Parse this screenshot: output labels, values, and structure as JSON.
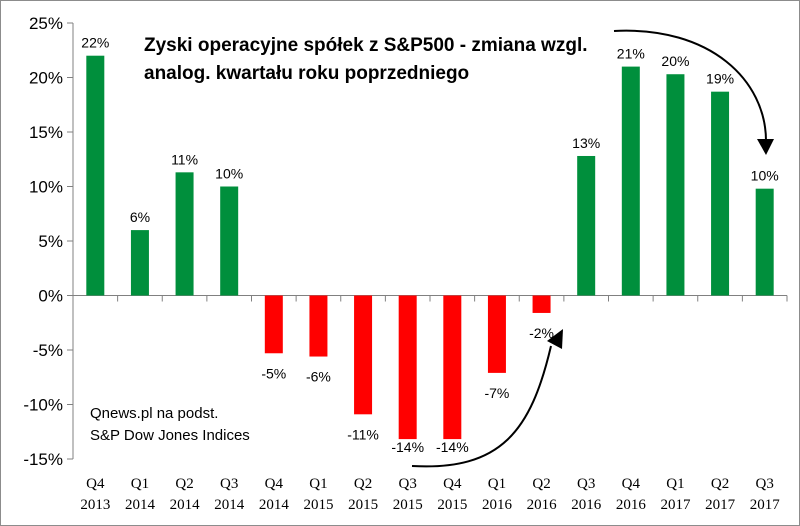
{
  "chart_data": {
    "type": "bar",
    "title": [
      "Zyski operacyjne spółek z S&P500 - zmiana wzgl.",
      "analog. kwartału roku poprzedniego"
    ],
    "source": [
      "Qnews.pl na podst.",
      "S&P Dow Jones Indices"
    ],
    "categories": [
      [
        "Q4",
        "2013"
      ],
      [
        "Q1",
        "2014"
      ],
      [
        "Q2",
        "2014"
      ],
      [
        "Q3",
        "2014"
      ],
      [
        "Q4",
        "2014"
      ],
      [
        "Q1",
        "2015"
      ],
      [
        "Q2",
        "2015"
      ],
      [
        "Q3",
        "2015"
      ],
      [
        "Q4",
        "2015"
      ],
      [
        "Q1",
        "2016"
      ],
      [
        "Q2",
        "2016"
      ],
      [
        "Q3",
        "2016"
      ],
      [
        "Q4",
        "2016"
      ],
      [
        "Q1",
        "2017"
      ],
      [
        "Q2",
        "2017"
      ],
      [
        "Q3",
        "2017"
      ]
    ],
    "values": [
      22.0,
      6.0,
      11.3,
      10.0,
      -5.3,
      -5.6,
      -10.9,
      -14.0,
      -14.0,
      -7.1,
      -1.6,
      12.8,
      21.0,
      20.3,
      18.7,
      9.8
    ],
    "data_labels": [
      "22%",
      "6%",
      "11%",
      "10%",
      "-5%",
      "-6%",
      "-11%",
      "-14%",
      "-14%",
      "-7%",
      "-2%",
      "13%",
      "21%",
      "20%",
      "19%",
      "10%"
    ],
    "y_ticks": [
      25,
      20,
      15,
      10,
      5,
      0,
      -5,
      -10,
      -15
    ],
    "y_tick_labels": [
      "25%",
      "20%",
      "15%",
      "10%",
      "5%",
      "0%",
      "-5%",
      "-10%",
      "-15%"
    ],
    "ylim": [
      -15,
      25
    ],
    "xlabel": "",
    "ylabel": "",
    "grid": false,
    "colors": {
      "positive": "#008f3c",
      "negative": "#ff0000",
      "axis": "#808080",
      "arrow": "#000000"
    }
  }
}
